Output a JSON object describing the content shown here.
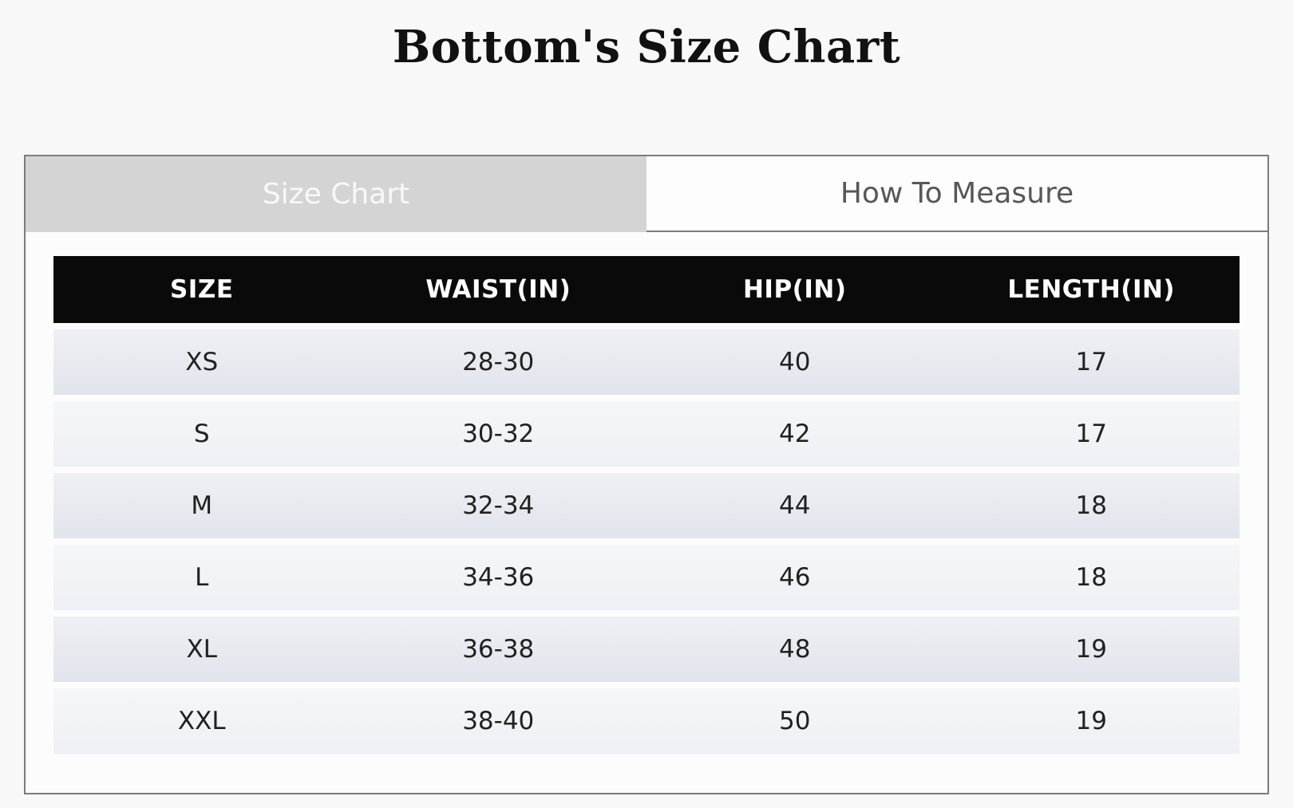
{
  "page": {
    "title": "Bottom's Size Chart"
  },
  "tabs": [
    {
      "label": "Size Chart",
      "active": true
    },
    {
      "label": "How To Measure",
      "active": false
    }
  ],
  "table": {
    "columns": [
      "SIZE",
      "WAIST(IN)",
      "HIP(IN)",
      "LENGTH(IN)"
    ],
    "rows": [
      [
        "XS",
        "28-30",
        "40",
        "17"
      ],
      [
        "S",
        "30-32",
        "42",
        "17"
      ],
      [
        "M",
        "32-34",
        "44",
        "18"
      ],
      [
        "L",
        "34-36",
        "46",
        "18"
      ],
      [
        "XL",
        "36-38",
        "48",
        "19"
      ],
      [
        "XXL",
        "38-40",
        "50",
        "19"
      ]
    ]
  },
  "colors": {
    "page_background": "#f8f8f8",
    "container_border": "#7c7c7c",
    "active_tab_bg": "#d4d4d4",
    "active_tab_text": "#f8f8f8",
    "inactive_tab_bg": "#fdfdfd",
    "inactive_tab_text": "#575757",
    "header_bg": "#0a0a0a",
    "header_text": "#ffffff",
    "row_odd_bg": "#e4e6ee",
    "row_even_bg": "#f2f3f8",
    "cell_text": "#212121"
  }
}
